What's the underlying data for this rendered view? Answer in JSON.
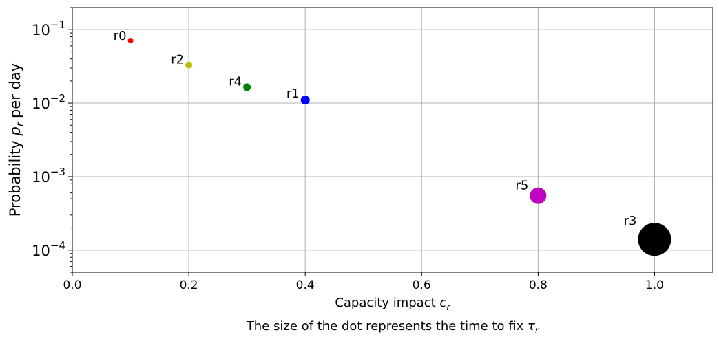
{
  "chart_data": {
    "type": "scatter",
    "xlabel": "Capacity impact",
    "xlabel_symbol": "c",
    "xlabel_sub": "r",
    "ylabel": "Probability",
    "ylabel_symbol": "p",
    "ylabel_sub": "r",
    "ylabel_suffix": "per day",
    "caption": "The size of the dot represents the time to fix",
    "caption_symbol": "τ",
    "caption_sub": "r",
    "xlim": [
      0.0,
      1.1
    ],
    "ylim": [
      5e-05,
      0.2
    ],
    "yscale": "log",
    "grid": true,
    "x_ticks": [
      "0.0",
      "0.2",
      "0.4",
      "0.6",
      "0.8",
      "1.0"
    ],
    "x_tick_values": [
      0.0,
      0.2,
      0.4,
      0.6,
      0.8,
      1.0
    ],
    "y_tick_values": [
      0.0001,
      0.001,
      0.01,
      0.1
    ],
    "y_tick_base": "10",
    "y_tick_exponents": [
      "−4",
      "−3",
      "−2",
      "−1"
    ],
    "points": [
      {
        "label": "r0",
        "x": 0.1,
        "y": 0.071,
        "color": "#ff0000",
        "size_rank": 1
      },
      {
        "label": "r2",
        "x": 0.2,
        "y": 0.033,
        "color": "#bfbf00",
        "size_rank": 2
      },
      {
        "label": "r4",
        "x": 0.3,
        "y": 0.0165,
        "color": "#008000",
        "size_rank": 3
      },
      {
        "label": "r1",
        "x": 0.4,
        "y": 0.011,
        "color": "#0000ff",
        "size_rank": 4
      },
      {
        "label": "r5",
        "x": 0.8,
        "y": 0.00055,
        "color": "#bf00bf",
        "size_rank": 5
      },
      {
        "label": "r3",
        "x": 1.0,
        "y": 0.00014,
        "color": "#000000",
        "size_rank": 6
      }
    ]
  }
}
